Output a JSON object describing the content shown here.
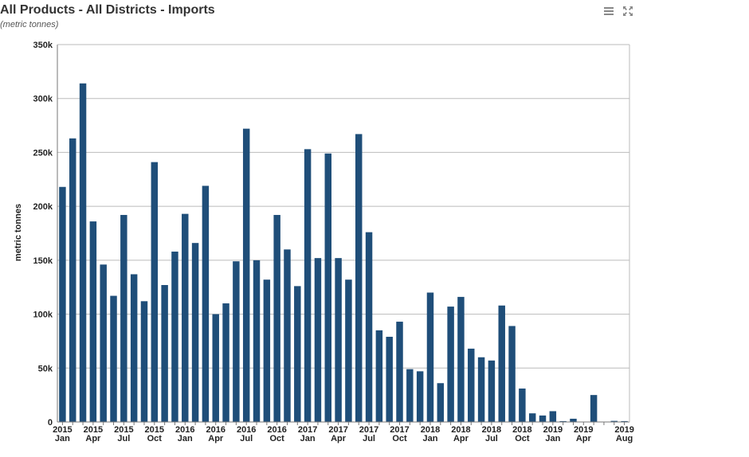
{
  "header": {
    "title": "All Products - All Districts - Imports",
    "subtitle": "(metric tonnes)"
  },
  "toolbar": {
    "menu_icon": "hamburger-menu-icon",
    "fullscreen_icon": "fullscreen-expand-icon"
  },
  "colors": {
    "bar": "#1f4e79",
    "grid": "#bbbbbb",
    "axis": "#777777"
  },
  "chart_data": {
    "type": "bar",
    "ylabel": "metric tonnes",
    "ylim": [
      0,
      350000
    ],
    "yticks": [
      0,
      50000,
      100000,
      150000,
      200000,
      250000,
      300000,
      350000
    ],
    "ytick_labels": [
      "0",
      "50k",
      "100k",
      "150k",
      "200k",
      "250k",
      "300k",
      "350k"
    ],
    "grid": true,
    "categories": [
      "2015-01",
      "2015-02",
      "2015-03",
      "2015-04",
      "2015-05",
      "2015-06",
      "2015-07",
      "2015-08",
      "2015-09",
      "2015-10",
      "2015-11",
      "2015-12",
      "2016-01",
      "2016-02",
      "2016-03",
      "2016-04",
      "2016-05",
      "2016-06",
      "2016-07",
      "2016-08",
      "2016-09",
      "2016-10",
      "2016-11",
      "2016-12",
      "2017-01",
      "2017-02",
      "2017-03",
      "2017-04",
      "2017-05",
      "2017-06",
      "2017-07",
      "2017-08",
      "2017-09",
      "2017-10",
      "2017-11",
      "2017-12",
      "2018-01",
      "2018-02",
      "2018-03",
      "2018-04",
      "2018-05",
      "2018-06",
      "2018-07",
      "2018-08",
      "2018-09",
      "2018-10",
      "2018-11",
      "2018-12",
      "2019-01",
      "2019-02",
      "2019-03",
      "2019-04",
      "2019-05",
      "2019-06",
      "2019-07",
      "2019-08"
    ],
    "values": [
      218000,
      263000,
      314000,
      186000,
      146000,
      117000,
      192000,
      137000,
      112000,
      241000,
      127000,
      158000,
      193000,
      166000,
      219000,
      100000,
      110000,
      149000,
      272000,
      150000,
      132000,
      192000,
      160000,
      126000,
      253000,
      152000,
      249000,
      152000,
      132000,
      267000,
      176000,
      85000,
      79000,
      93000,
      49000,
      47000,
      120000,
      36000,
      107000,
      116000,
      68000,
      60000,
      57000,
      108000,
      89000,
      31000,
      8000,
      6000,
      10000,
      800,
      3000,
      0,
      25000,
      0,
      1000,
      800
    ],
    "x_tick_labels": [
      {
        "index": 0,
        "year": "2015",
        "month": "Jan"
      },
      {
        "index": 3,
        "year": "2015",
        "month": "Apr"
      },
      {
        "index": 6,
        "year": "2015",
        "month": "Jul"
      },
      {
        "index": 9,
        "year": "2015",
        "month": "Oct"
      },
      {
        "index": 12,
        "year": "2016",
        "month": "Jan"
      },
      {
        "index": 15,
        "year": "2016",
        "month": "Apr"
      },
      {
        "index": 18,
        "year": "2016",
        "month": "Jul"
      },
      {
        "index": 21,
        "year": "2016",
        "month": "Oct"
      },
      {
        "index": 24,
        "year": "2017",
        "month": "Jan"
      },
      {
        "index": 27,
        "year": "2017",
        "month": "Apr"
      },
      {
        "index": 30,
        "year": "2017",
        "month": "Jul"
      },
      {
        "index": 33,
        "year": "2017",
        "month": "Oct"
      },
      {
        "index": 36,
        "year": "2018",
        "month": "Jan"
      },
      {
        "index": 39,
        "year": "2018",
        "month": "Apr"
      },
      {
        "index": 42,
        "year": "2018",
        "month": "Jul"
      },
      {
        "index": 45,
        "year": "2018",
        "month": "Oct"
      },
      {
        "index": 48,
        "year": "2019",
        "month": "Jan"
      },
      {
        "index": 51,
        "year": "2019",
        "month": "Apr"
      },
      {
        "index": 55,
        "year": "2019",
        "month": "Aug"
      }
    ]
  }
}
